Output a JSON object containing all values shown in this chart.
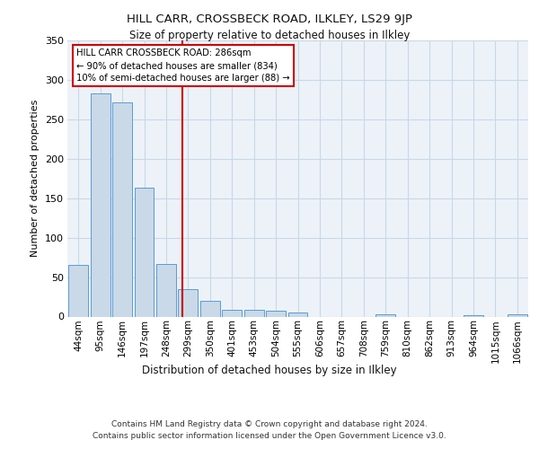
{
  "title": "HILL CARR, CROSSBECK ROAD, ILKLEY, LS29 9JP",
  "subtitle": "Size of property relative to detached houses in Ilkley",
  "xlabel": "Distribution of detached houses by size in Ilkley",
  "ylabel": "Number of detached properties",
  "footer_line1": "Contains HM Land Registry data © Crown copyright and database right 2024.",
  "footer_line2": "Contains public sector information licensed under the Open Government Licence v3.0.",
  "categories": [
    "44sqm",
    "95sqm",
    "146sqm",
    "197sqm",
    "248sqm",
    "299sqm",
    "350sqm",
    "401sqm",
    "453sqm",
    "504sqm",
    "555sqm",
    "606sqm",
    "657sqm",
    "708sqm",
    "759sqm",
    "810sqm",
    "862sqm",
    "913sqm",
    "964sqm",
    "1015sqm",
    "1066sqm"
  ],
  "values": [
    65,
    283,
    272,
    163,
    67,
    35,
    20,
    8,
    9,
    7,
    5,
    0,
    0,
    0,
    3,
    0,
    0,
    0,
    2,
    0,
    3
  ],
  "bar_color": "#c9d9e8",
  "bar_edge_color": "#5b9bd5",
  "grid_color": "#c8d8e8",
  "bg_color": "#edf2f8",
  "marker_label_line1": "HILL CARR CROSSBECK ROAD: 286sqm",
  "marker_label_line2": "← 90% of detached houses are smaller (834)",
  "marker_label_line3": "10% of semi-detached houses are larger (88) →",
  "annotation_box_color": "#ffffff",
  "annotation_border_color": "#cc0000",
  "marker_line_color": "#cc0000",
  "marker_bar_index": 4.75,
  "ylim": [
    0,
    350
  ],
  "yticks": [
    0,
    50,
    100,
    150,
    200,
    250,
    300,
    350
  ]
}
